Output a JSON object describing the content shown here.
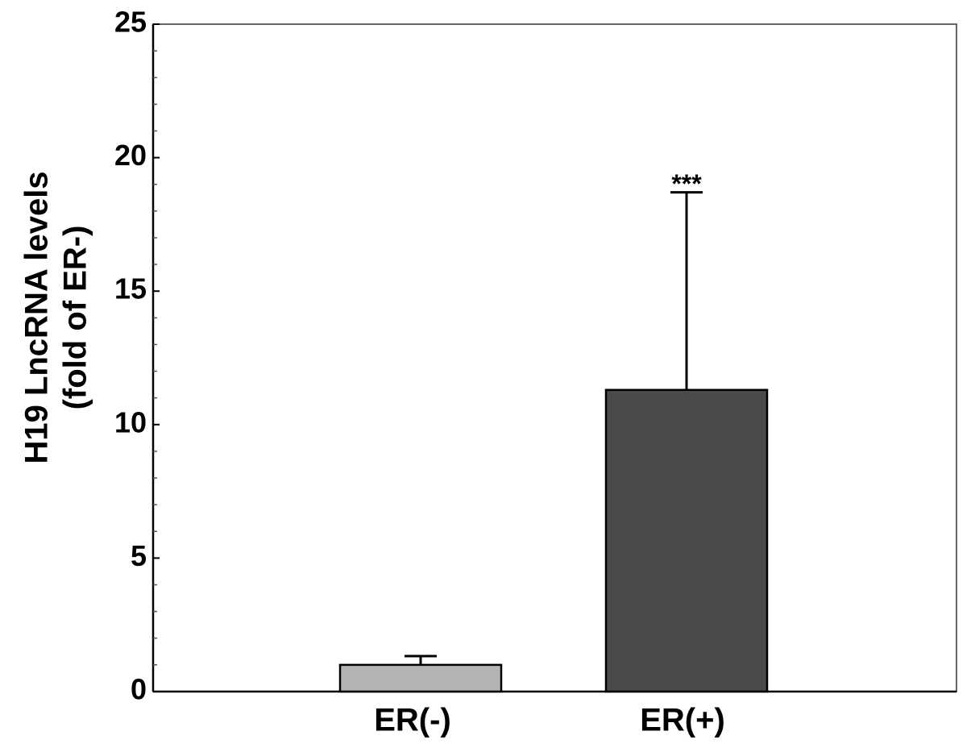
{
  "chart_data": {
    "type": "bar",
    "ylabel": [
      "H19 LncRNA levels",
      "(fold of ER-)"
    ],
    "categories": [
      "ER(-)",
      "ER(+)"
    ],
    "values": [
      1.0,
      11.3
    ],
    "errors": [
      0.33,
      7.4
    ],
    "significance": [
      null,
      "***"
    ],
    "colors": [
      "#b4b4b4",
      "#4a4a4a"
    ],
    "ylim": [
      0,
      25
    ],
    "yticks": [
      0,
      5,
      10,
      15,
      20,
      25
    ],
    "yminorticks": [
      1,
      2,
      3,
      4,
      6,
      7,
      8,
      9,
      11,
      12,
      13,
      14,
      16,
      17,
      18,
      19,
      21,
      22,
      23,
      24
    ]
  }
}
